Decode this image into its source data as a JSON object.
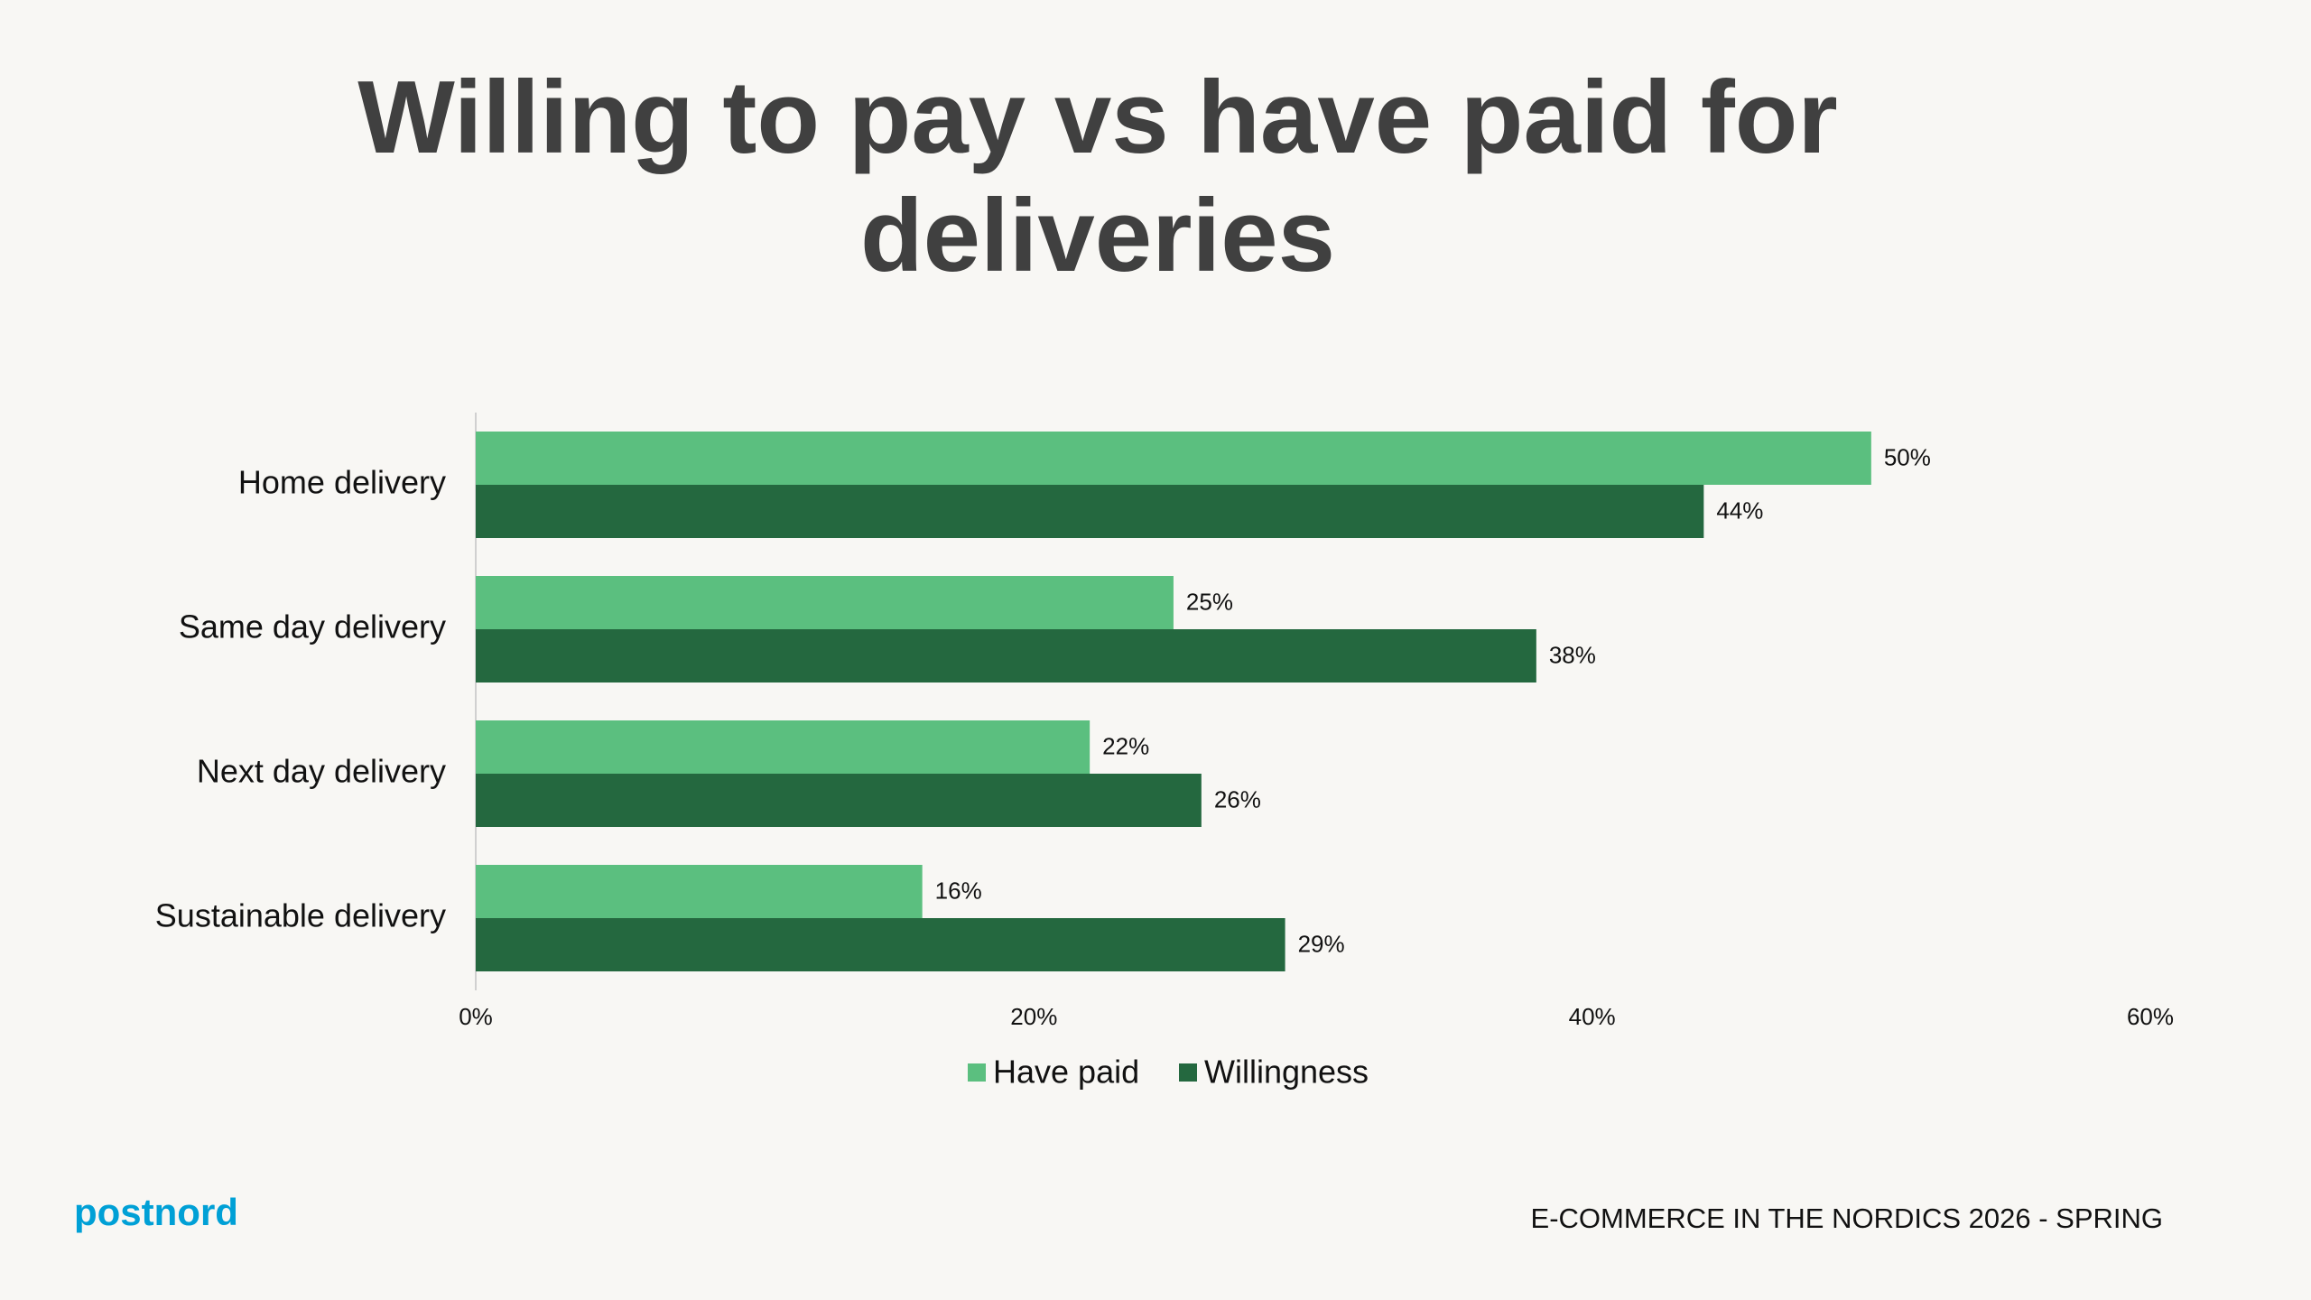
{
  "chart_data": {
    "type": "hbar",
    "title_lines": [
      "Willing to pay vs have paid for",
      "deliveries"
    ],
    "categories": [
      "Home delivery",
      "Same day delivery",
      "Next day delivery",
      "Sustainable delivery"
    ],
    "series": [
      {
        "name": "Have paid",
        "color": "#5bbf7f",
        "values": [
          50,
          25,
          22,
          16
        ],
        "value_labels": [
          "50%",
          "25%",
          "22%",
          "16%"
        ]
      },
      {
        "name": "Willingness",
        "color": "#24683f",
        "values": [
          44,
          38,
          26,
          29
        ],
        "value_labels": [
          "44%",
          "38%",
          "26%",
          "29%"
        ]
      }
    ],
    "xlim": [
      0,
      60
    ],
    "xticks": [
      {
        "value": 0,
        "label": "0%"
      },
      {
        "value": 20,
        "label": "20%"
      },
      {
        "value": 40,
        "label": "40%"
      },
      {
        "value": 60,
        "label": "60%"
      }
    ],
    "grid": false,
    "legend": "bottom"
  },
  "logo": "postnord",
  "footer": "E-COMMERCE IN THE NORDICS 2026 - SPRING"
}
